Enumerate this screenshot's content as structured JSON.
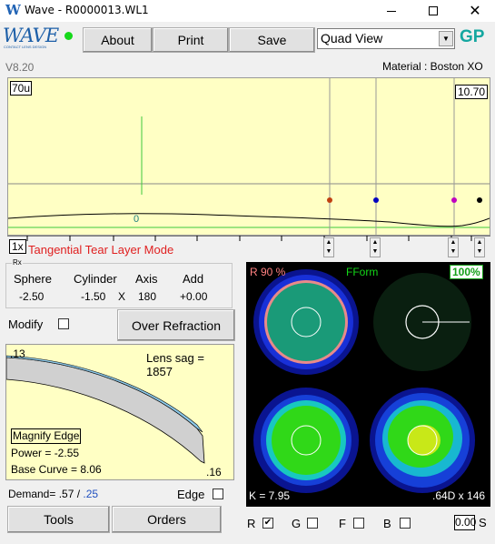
{
  "window": {
    "title": "Wave - R0000013.WL1"
  },
  "logo": {
    "text": "WAVE",
    "subtitle": "CONTACT LENS DESIGN"
  },
  "toolbar": {
    "about": "About",
    "print": "Print",
    "save": "Save",
    "view_selected": "Quad View",
    "gp": "GP"
  },
  "version": "V8.20",
  "material": "Material : Boston XO",
  "profile_graph": {
    "scale_tag": "70u",
    "value_tag": "10.70",
    "zoom_tag": "1x",
    "mode": "Tangential Tear Layer Mode",
    "center_marker": "0",
    "marker_colors": [
      "#c04010",
      "#0000c0",
      "#c000c0",
      "#000000"
    ]
  },
  "rx": {
    "legend": "Rx",
    "headers": [
      "Sphere",
      "Cylinder",
      "Axis",
      "Add"
    ],
    "values": [
      "-2.50",
      "-1.50",
      "180",
      "+0.00"
    ],
    "axis_symbol": "X"
  },
  "modify": {
    "label": "Modify",
    "over_refraction": "Over Refraction"
  },
  "lens_panel": {
    "edge_top": ".13",
    "lens_sag": "Lens sag = 1857",
    "magnify": "Magnify Edge",
    "power": "Power = -2.55",
    "base_curve": "Base Curve = 8.06",
    "edge_bottom": ".16"
  },
  "demand": {
    "label": "Demand= .57 /",
    "value2": ".25"
  },
  "edge_option": {
    "label": "Edge"
  },
  "buttons": {
    "tools": "Tools",
    "orders": "Orders"
  },
  "quad": {
    "r_label": "R 90 %",
    "form_label": "FForm",
    "percent": "100%",
    "k_label": "K = 7.95",
    "d_label": ".64D x 146"
  },
  "channels": [
    {
      "label": "R",
      "checked": true
    },
    {
      "label": "G",
      "checked": false
    },
    {
      "label": "F",
      "checked": false
    },
    {
      "label": "B",
      "checked": false
    }
  ],
  "scale_value": "0.00",
  "scale_suffix": "S"
}
